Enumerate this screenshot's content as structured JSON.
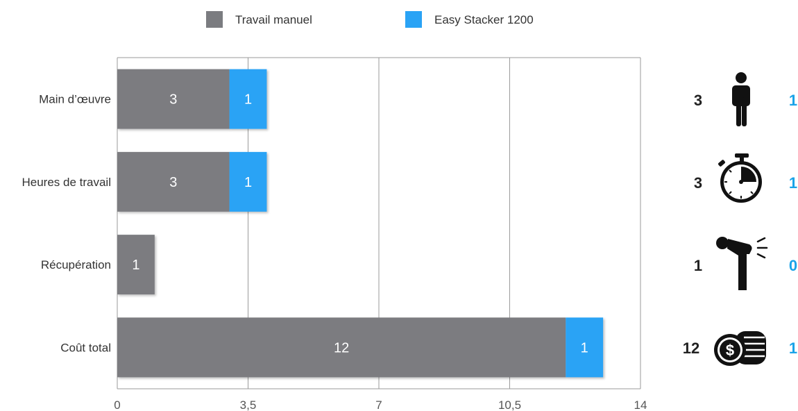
{
  "colors": {
    "manual": "#7b7c80",
    "easy": "#2aa3f5",
    "accent_text": "#1aa3e8",
    "grid": "#9a9a9a"
  },
  "chart_data": {
    "type": "bar",
    "orientation": "horizontal",
    "stacked": true,
    "title": "",
    "xlabel": "",
    "ylabel": "",
    "categories": [
      "Main d’œuvre",
      "Heures de travail",
      "Récupération",
      "Coût total"
    ],
    "series": [
      {
        "name": "Travail manuel",
        "values": [
          3,
          3,
          1,
          12
        ]
      },
      {
        "name": "Easy Stacker 1200",
        "values": [
          1,
          1,
          0,
          1
        ]
      }
    ],
    "xlim": [
      0,
      14
    ],
    "x_ticks": [
      "0",
      "3,5",
      "7",
      "10,5",
      "14"
    ],
    "grid": true,
    "legend_position": "top"
  },
  "side_panel": [
    {
      "icon": "person-icon",
      "manual": "3",
      "easy": "1"
    },
    {
      "icon": "stopwatch-icon",
      "manual": "3",
      "easy": "1"
    },
    {
      "icon": "back-pain-icon",
      "manual": "1",
      "easy": "0"
    },
    {
      "icon": "coins-icon",
      "manual": "12",
      "easy": "1"
    }
  ]
}
